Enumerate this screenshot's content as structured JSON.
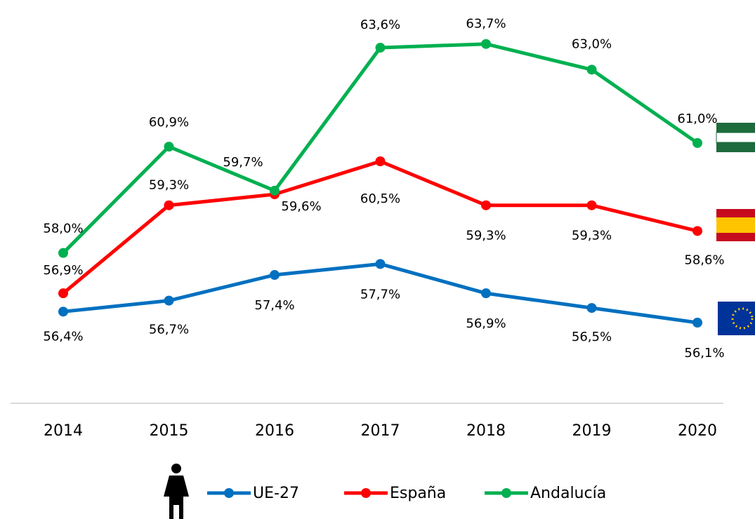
{
  "chart_data": {
    "type": "line",
    "categories": [
      "2014",
      "2015",
      "2016",
      "2017",
      "2018",
      "2019",
      "2020"
    ],
    "series": [
      {
        "name": "UE-27",
        "color": "#0070c0",
        "values": [
          56.4,
          56.7,
          57.4,
          57.7,
          56.9,
          56.5,
          56.1
        ],
        "value_labels": [
          "56,4%",
          "56,7%",
          "57,4%",
          "57,7%",
          "56,9%",
          "56,5%",
          "56,1%"
        ]
      },
      {
        "name": "España",
        "color": "#ff0000",
        "values": [
          56.9,
          59.3,
          59.6,
          60.5,
          59.3,
          59.3,
          58.6
        ],
        "value_labels": [
          "56,9%",
          "59,3%",
          "59,6%",
          "60,5%",
          "59,3%",
          "59,3%",
          "58,6%"
        ]
      },
      {
        "name": "Andalucía",
        "color": "#00b050",
        "values": [
          58.0,
          60.9,
          59.7,
          63.6,
          63.7,
          63.0,
          61.0
        ],
        "value_labels": [
          "58,0%",
          "60,9%",
          "59,7%",
          "63,6%",
          "63,7%",
          "63,0%",
          "61,0%"
        ]
      }
    ],
    "ylim": [
      53.9,
      64.9
    ],
    "grid": false,
    "legend": "bottom"
  }
}
